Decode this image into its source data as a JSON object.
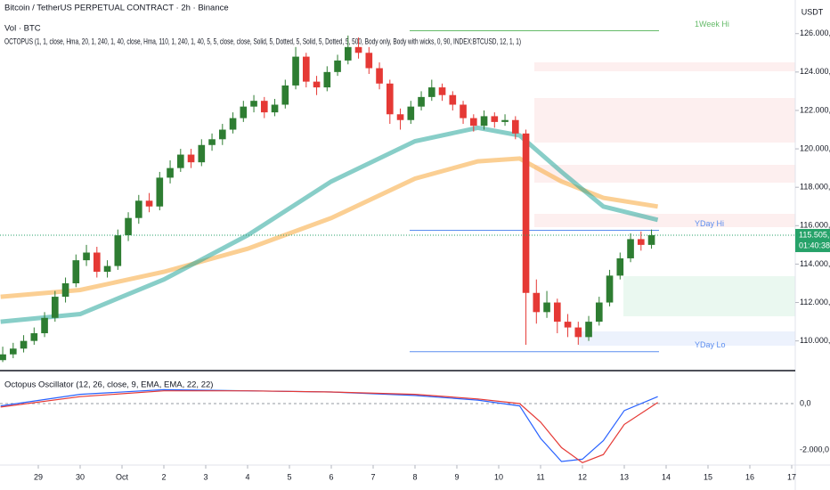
{
  "header": {
    "symbol": "Bitcoin / TetherUS PERPETUAL CONTRACT · 2h · Binance",
    "volume": "Vol · BTC",
    "indicator": "OCTOPUS (1, 1, close, Hma, 20, 1, 240, 1, 40, close, Hma, 110, 1, 240, 1, 40, 5, 5, close, close, Solid, 5, Dotted, 5, Solid, 5, Dotted, 5, 500, Body only, Body with wicks, 0, 90, INDEX:BTCUSD, 12, 1, 1)"
  },
  "chart_data": [
    {
      "type": "candlestick",
      "axis_unit": "USDT",
      "up_color": "#2e7d32",
      "down_color": "#e53935",
      "xlim": [
        -0.915,
        18.085
      ],
      "ylim": [
        108500,
        127750
      ],
      "xticks": [
        {
          "value": 0,
          "label": "29"
        },
        {
          "value": 1,
          "label": "30"
        },
        {
          "value": 2,
          "label": "Oct"
        },
        {
          "value": 3,
          "label": "2"
        },
        {
          "value": 4,
          "label": "3"
        },
        {
          "value": 5,
          "label": "4"
        },
        {
          "value": 6,
          "label": "5"
        },
        {
          "value": 7,
          "label": "6"
        },
        {
          "value": 8,
          "label": "7"
        },
        {
          "value": 9,
          "label": "8"
        },
        {
          "value": 10,
          "label": "9"
        },
        {
          "value": 11,
          "label": "10"
        },
        {
          "value": 12,
          "label": "11"
        },
        {
          "value": 13,
          "label": "12"
        },
        {
          "value": 14,
          "label": "13"
        },
        {
          "value": 15,
          "label": "14"
        },
        {
          "value": 16,
          "label": "15"
        },
        {
          "value": 17,
          "label": "16"
        },
        {
          "value": 18,
          "label": "17"
        }
      ],
      "yticks": [
        {
          "value": 110000,
          "label": "110.000,0"
        },
        {
          "value": 112000,
          "label": "112.000,0"
        },
        {
          "value": 114000,
          "label": "114.000,0"
        },
        {
          "value": 116000,
          "label": "116.000,0"
        },
        {
          "value": 118000,
          "label": "118.000,0"
        },
        {
          "value": 120000,
          "label": "120.000,0"
        },
        {
          "value": 122000,
          "label": "122.000,0"
        },
        {
          "value": 124000,
          "label": "124.000,0"
        },
        {
          "value": 126000,
          "label": "126.000,0"
        }
      ],
      "x": [
        -0.85,
        -0.6,
        -0.35,
        -0.1,
        0.15,
        0.4,
        0.65,
        0.9,
        1.15,
        1.4,
        1.65,
        1.9,
        2.15,
        2.4,
        2.65,
        2.9,
        3.15,
        3.4,
        3.65,
        3.9,
        4.15,
        4.4,
        4.65,
        4.9,
        5.15,
        5.4,
        5.65,
        5.9,
        6.15,
        6.4,
        6.65,
        6.9,
        7.15,
        7.4,
        7.65,
        7.9,
        8.15,
        8.4,
        8.65,
        8.9,
        9.15,
        9.4,
        9.65,
        9.9,
        10.15,
        10.4,
        10.65,
        10.9,
        11.15,
        11.4,
        11.65,
        11.9,
        12.15,
        12.4,
        12.65,
        12.9,
        13.15,
        13.4,
        13.65,
        13.9,
        14.15,
        14.4,
        14.65
      ],
      "open": [
        109000,
        109300,
        109600,
        110000,
        110400,
        111200,
        112300,
        113000,
        114200,
        114600,
        113600,
        113900,
        115500,
        116400,
        117300,
        117000,
        118500,
        119000,
        119700,
        119300,
        120200,
        120500,
        121000,
        121600,
        122200,
        122500,
        121900,
        122300,
        123300,
        124800,
        123500,
        123200,
        124000,
        124600,
        125300,
        125000,
        124200,
        123400,
        121800,
        121500,
        122200,
        122700,
        123200,
        122800,
        122300,
        121600,
        121200,
        121700,
        121400,
        121500,
        120800,
        112500,
        111500,
        112000,
        111000,
        110700,
        110200,
        111000,
        112000,
        113400,
        114300,
        115300,
        115000
      ],
      "high": [
        109700,
        109900,
        110300,
        110700,
        111500,
        112600,
        113300,
        114500,
        115000,
        114900,
        114200,
        115800,
        116700,
        117600,
        117700,
        118800,
        119400,
        120000,
        120000,
        120500,
        120800,
        121300,
        121900,
        122500,
        122800,
        122700,
        122600,
        123600,
        125300,
        125000,
        123800,
        124300,
        124900,
        125900,
        125800,
        125300,
        124500,
        123600,
        122100,
        122500,
        123000,
        123600,
        123400,
        123000,
        122500,
        121800,
        122000,
        121900,
        121800,
        121700,
        121000,
        113200,
        112600,
        112200,
        111400,
        111000,
        111300,
        112300,
        113700,
        114600,
        115600,
        115700,
        115800
      ],
      "low": [
        108900,
        109100,
        109400,
        109800,
        110200,
        111000,
        112000,
        112800,
        113900,
        113300,
        113300,
        113700,
        115200,
        116100,
        116700,
        116800,
        118200,
        118800,
        119000,
        119100,
        119900,
        120200,
        120800,
        121400,
        121900,
        121600,
        121700,
        122100,
        123100,
        123200,
        122800,
        123000,
        123800,
        124400,
        124700,
        123900,
        123100,
        121300,
        121000,
        121300,
        122000,
        122500,
        122500,
        122000,
        121300,
        120900,
        121000,
        121100,
        121200,
        120500,
        109800,
        110900,
        111200,
        110400,
        110200,
        109800,
        110000,
        110800,
        111800,
        113200,
        114100,
        114700,
        114800
      ],
      "close": [
        109300,
        109600,
        110000,
        110400,
        111200,
        112300,
        113000,
        114200,
        114600,
        113600,
        113900,
        115500,
        116400,
        117300,
        117000,
        118500,
        119000,
        119700,
        119300,
        120200,
        120500,
        121000,
        121600,
        122200,
        122500,
        121900,
        122300,
        123300,
        124800,
        123500,
        123200,
        124000,
        124600,
        125300,
        125000,
        124200,
        123400,
        121800,
        121500,
        122200,
        122700,
        123200,
        122800,
        122300,
        121600,
        121200,
        121700,
        121400,
        121500,
        120800,
        112500,
        111500,
        112000,
        111000,
        110700,
        110200,
        111000,
        112000,
        113400,
        114300,
        115300,
        115000,
        115505.7
      ],
      "lines": [
        {
          "color": "#f7a83a",
          "x": [
            -0.9,
            1,
            3,
            5,
            7,
            9,
            10.5,
            11.5,
            12.5,
            13.5,
            14.8
          ],
          "values": [
            112300,
            112650,
            113600,
            114800,
            116400,
            118450,
            119350,
            119500,
            118300,
            117450,
            117000
          ]
        },
        {
          "color": "#26a69a",
          "x": [
            -0.9,
            1,
            3,
            5,
            7,
            9,
            10.5,
            11.5,
            12.5,
            13.5,
            14.8
          ],
          "values": [
            111000,
            111400,
            113200,
            115500,
            118300,
            120400,
            121100,
            120700,
            118800,
            117000,
            116300
          ]
        }
      ],
      "levels": [
        {
          "label": "1Week Hi",
          "value": 126150,
          "color": "#66bb6a"
        },
        {
          "label": "YDay Hi",
          "value": 115760,
          "color": "#5b8def"
        },
        {
          "label": "YDay Lo",
          "value": 109440,
          "color": "#5b8def"
        }
      ],
      "last_price": {
        "value": 115505.7,
        "label": "115.505,7",
        "countdown": "01:40:38",
        "color": "#26a269"
      }
    },
    {
      "type": "line",
      "title": "Octopus Oscillator (12, 26, close, 9, EMA, EMA, 22, 22)",
      "ylim": [
        -2654,
        1346
      ],
      "yticks": [
        {
          "value": 0,
          "label": "0,0"
        },
        {
          "value": -2000,
          "label": "-2.000,0"
        }
      ],
      "x": [
        -0.9,
        1,
        3,
        5,
        7,
        9,
        10.5,
        11.5,
        12,
        12.5,
        13,
        13.5,
        14,
        14.8
      ],
      "series": [
        {
          "color": "#2962ff",
          "values": [
            -100,
            400,
            600,
            550,
            500,
            350,
            150,
            -100,
            -1500,
            -2500,
            -2400,
            -1600,
            -300,
            300
          ]
        },
        {
          "color": "#e53935",
          "values": [
            -150,
            300,
            550,
            550,
            500,
            400,
            200,
            0,
            -800,
            -1900,
            -2550,
            -2200,
            -900,
            50
          ]
        }
      ]
    }
  ]
}
